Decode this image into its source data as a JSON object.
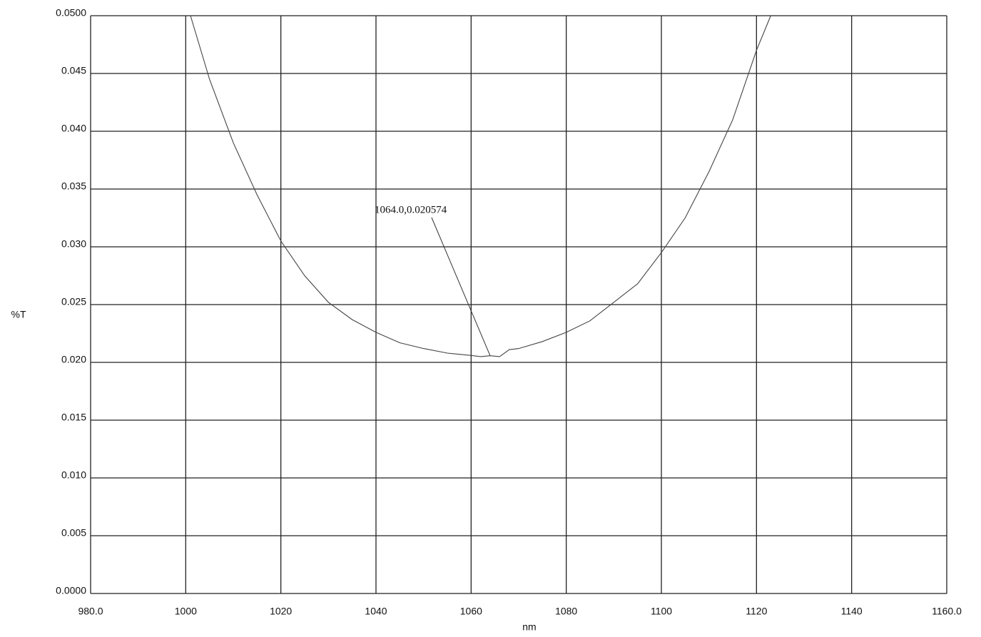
{
  "chart_data": {
    "type": "line",
    "x_label": "nm",
    "y_label": "%T",
    "xlim": [
      980,
      1160
    ],
    "ylim": [
      0,
      0.05
    ],
    "xticks": [
      {
        "value": 980,
        "label": "980.0"
      },
      1000,
      1020,
      1040,
      1060,
      1080,
      1100,
      1120,
      1140,
      {
        "value": 1160,
        "label": "1160.0"
      }
    ],
    "yticks": [
      {
        "value": 0,
        "label": "0.0000"
      },
      0.005,
      {
        "value": 0.01,
        "label": "0.010"
      },
      0.015,
      {
        "value": 0.02,
        "label": "0.020"
      },
      0.025,
      {
        "value": 0.03,
        "label": "0.030"
      },
      0.035,
      {
        "value": 0.04,
        "label": "0.040"
      },
      0.045,
      {
        "value": 0.05,
        "label": "0.0500"
      }
    ],
    "grid": true,
    "series": [
      {
        "name": "%T",
        "color": "#444444",
        "x": [
          1001,
          1005,
          1010,
          1015,
          1020,
          1025,
          1030,
          1035,
          1040,
          1045,
          1050,
          1055,
          1060,
          1062,
          1064,
          1066,
          1068,
          1070,
          1075,
          1080,
          1085,
          1090,
          1095,
          1100,
          1105,
          1110,
          1115,
          1120,
          1123
        ],
        "values": [
          0.05,
          0.0445,
          0.039,
          0.0345,
          0.0305,
          0.0275,
          0.0252,
          0.0237,
          0.0226,
          0.0217,
          0.0212,
          0.0208,
          0.0206,
          0.0205,
          0.020574,
          0.0205,
          0.0211,
          0.0212,
          0.0218,
          0.0226,
          0.0236,
          0.0252,
          0.0268,
          0.0295,
          0.0325,
          0.0365,
          0.041,
          0.047,
          0.05
        ]
      }
    ],
    "annotation": {
      "text": "1064.0,0.020574",
      "x": 1064,
      "y": 0.020574
    }
  }
}
